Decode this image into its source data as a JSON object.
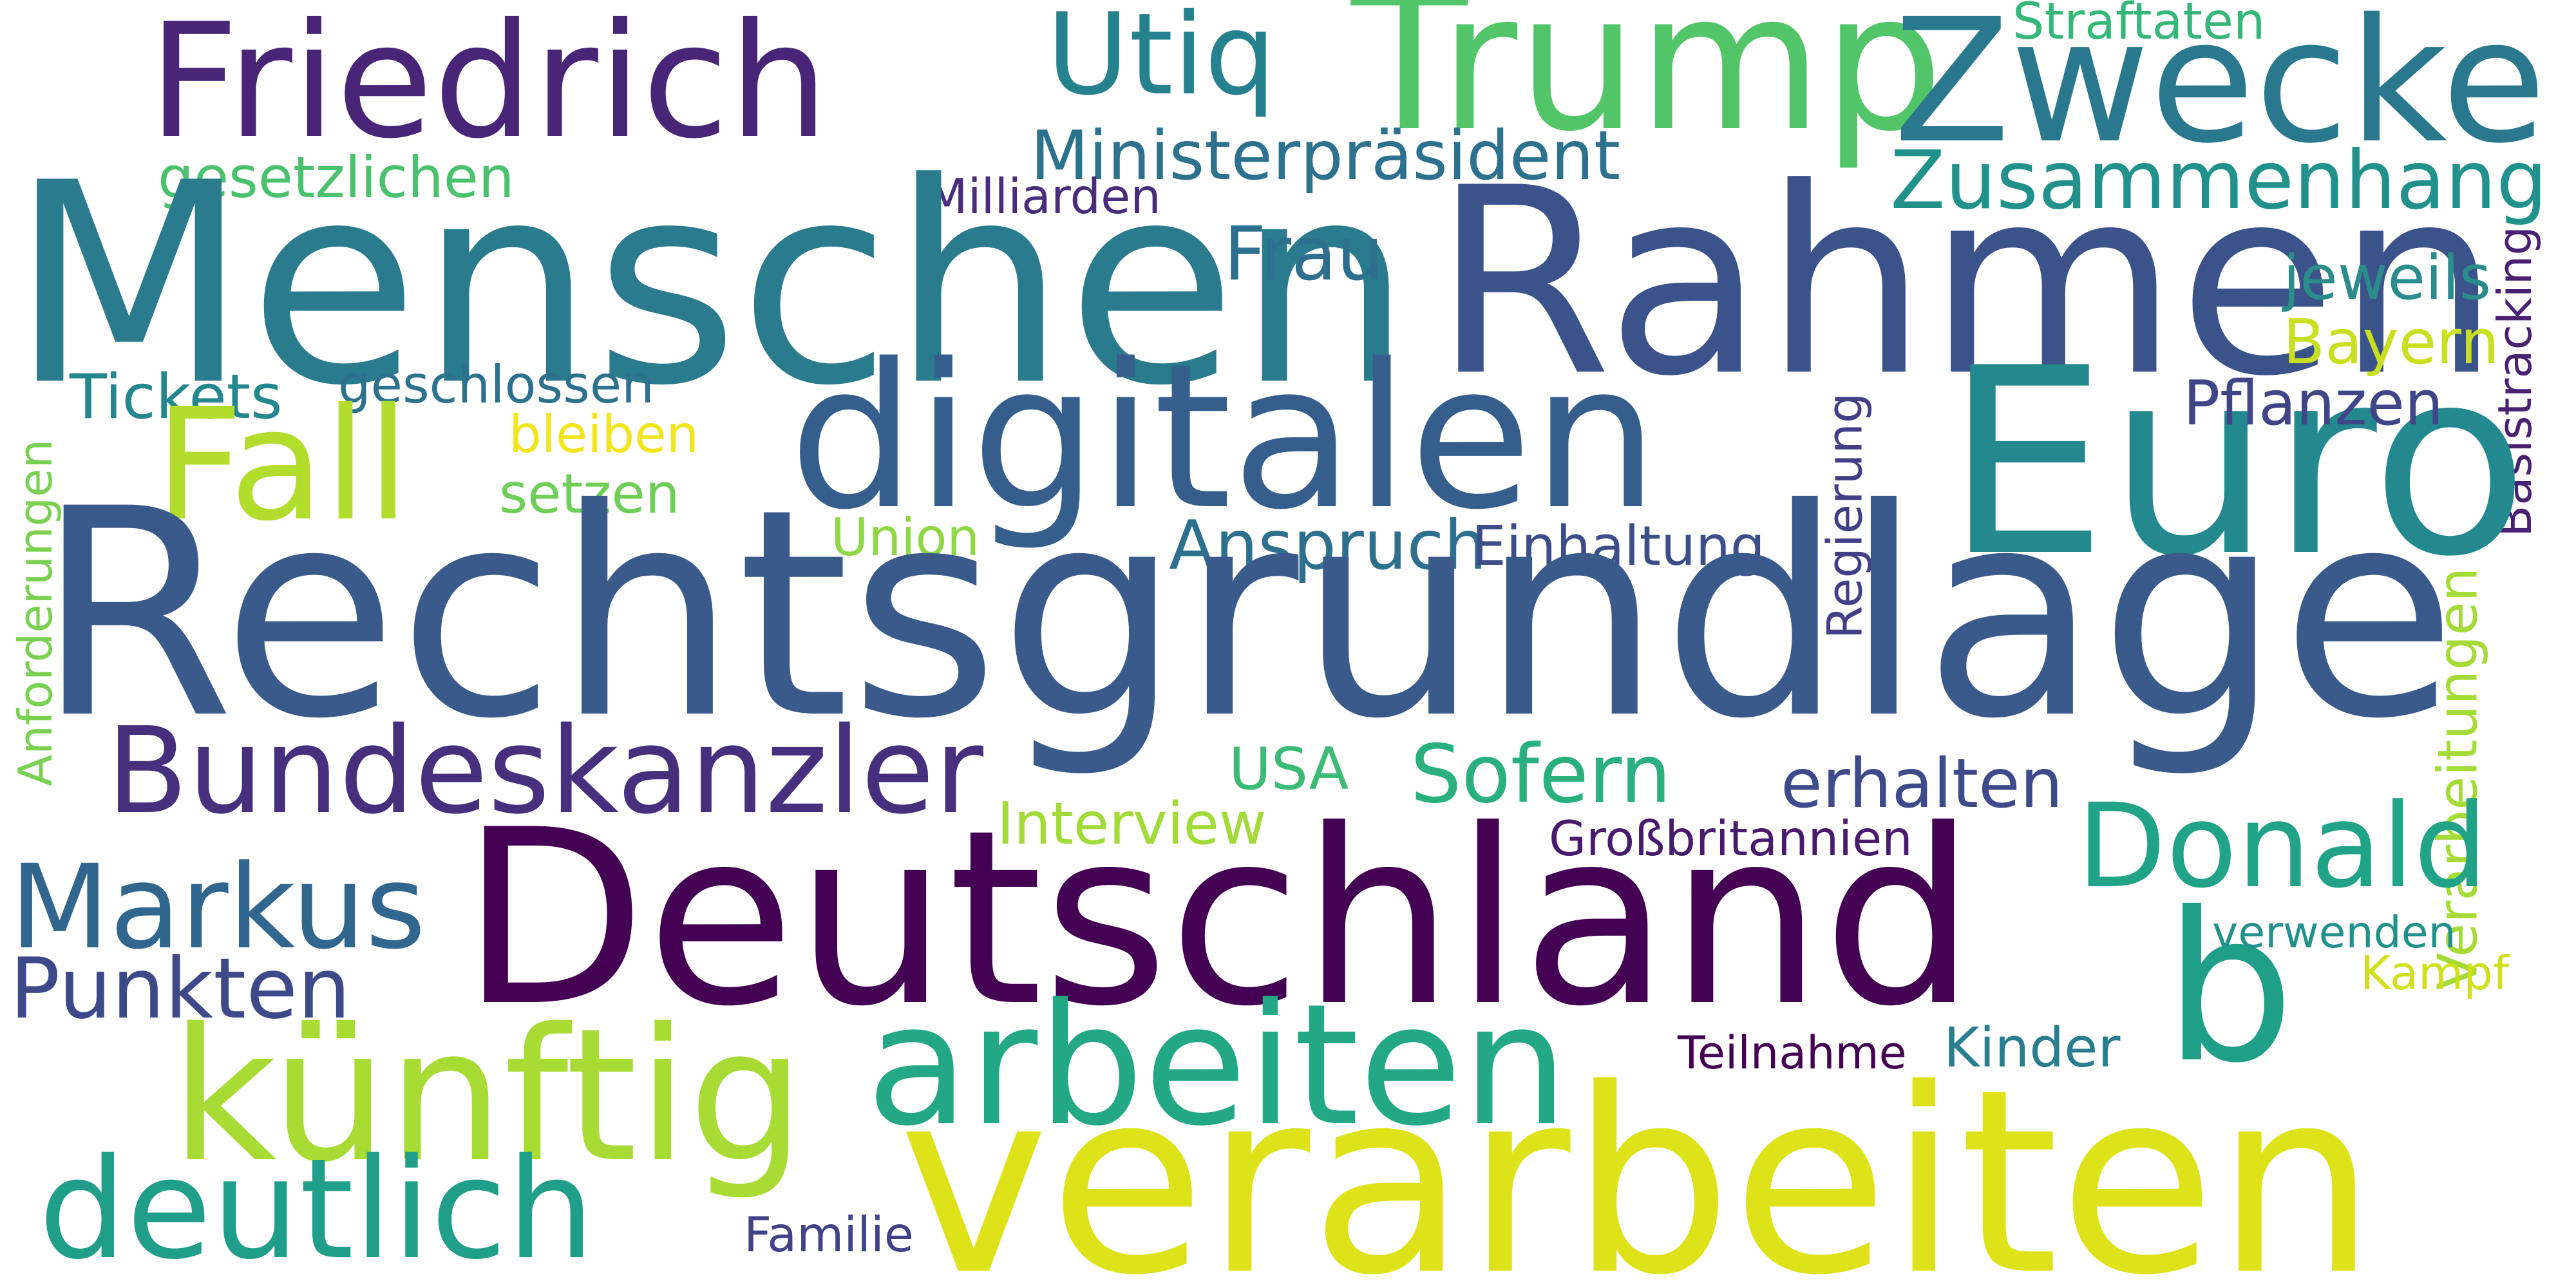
{
  "words": [
    {
      "id": "friedrich",
      "text": "Friedrich",
      "color": "#482576"
    },
    {
      "id": "utiq",
      "text": "Utiq",
      "color": "#26818e"
    },
    {
      "id": "trump",
      "text": "Trump",
      "color": "#52c569"
    },
    {
      "id": "zwecke",
      "text": "Zwecke",
      "color": "#2a788e"
    },
    {
      "id": "straftaten",
      "text": "Straftaten",
      "color": "#35b779"
    },
    {
      "id": "ministerpraesident",
      "text": "Ministerpräsident",
      "color": "#2c718e"
    },
    {
      "id": "gesetzlichen",
      "text": "gesetzlichen",
      "color": "#4ac16d"
    },
    {
      "id": "milliarden",
      "text": "Milliarden",
      "color": "#472d7b"
    },
    {
      "id": "zusammenhang",
      "text": "Zusammenhang",
      "color": "#21918c"
    },
    {
      "id": "menschen",
      "text": "Menschen",
      "color": "#2a7b8e"
    },
    {
      "id": "rahmen",
      "text": "Rahmen",
      "color": "#3b528b"
    },
    {
      "id": "frau",
      "text": "Frau",
      "color": "#2d6f8e"
    },
    {
      "id": "jeweils",
      "text": "jeweils",
      "color": "#2a8c8b"
    },
    {
      "id": "basistracking",
      "text": "Basistracking",
      "color": "#482173"
    },
    {
      "id": "bayern",
      "text": "Bayern",
      "color": "#c8e020"
    },
    {
      "id": "tickets",
      "text": "Tickets",
      "color": "#24878e"
    },
    {
      "id": "geschlossen",
      "text": "geschlossen",
      "color": "#2c728e"
    },
    {
      "id": "digitalen",
      "text": "digitalen",
      "color": "#355e8d"
    },
    {
      "id": "euro",
      "text": "Euro",
      "color": "#23898e"
    },
    {
      "id": "fall",
      "text": "Fall",
      "color": "#b2dd2d"
    },
    {
      "id": "bleiben",
      "text": "bleiben",
      "color": "#f1e51d"
    },
    {
      "id": "setzen",
      "text": "setzen",
      "color": "#6ece58"
    },
    {
      "id": "pflanzen",
      "text": "Pflanzen",
      "color": "#404588"
    },
    {
      "id": "anforderungen",
      "text": "Anforderungen",
      "color": "#7ad151"
    },
    {
      "id": "regierung",
      "text": "Regierung",
      "color": "#433e85"
    },
    {
      "id": "union",
      "text": "Union",
      "color": "#8fd744"
    },
    {
      "id": "anspruch",
      "text": "Anspruch",
      "color": "#2d708e"
    },
    {
      "id": "einhaltung",
      "text": "Einhaltung",
      "color": "#3d4d8a"
    },
    {
      "id": "rechtsgrundlage",
      "text": "Rechtsgrundlage",
      "color": "#3b5a8c"
    },
    {
      "id": "verarbeitungen",
      "text": "Verarbeitungen",
      "color": "#a5db36"
    },
    {
      "id": "bundeskanzler",
      "text": "Bundeskanzler",
      "color": "#46307e"
    },
    {
      "id": "usa",
      "text": "USA",
      "color": "#3bbb75"
    },
    {
      "id": "sofern",
      "text": "Sofern",
      "color": "#2ab07f"
    },
    {
      "id": "erhalten",
      "text": "erhalten",
      "color": "#3e4a89"
    },
    {
      "id": "interview",
      "text": "Interview",
      "color": "#a2da37"
    },
    {
      "id": "grossbritannien",
      "text": "Großbritannien",
      "color": "#481a6c"
    },
    {
      "id": "donald",
      "text": "Donald",
      "color": "#20a386"
    },
    {
      "id": "deutschland",
      "text": "Deutschland",
      "color": "#440154"
    },
    {
      "id": "markus",
      "text": "Markus",
      "color": "#31668e"
    },
    {
      "id": "punkten",
      "text": "Punkten",
      "color": "#3e4989"
    },
    {
      "id": "b",
      "text": "b",
      "color": "#1f9f88"
    },
    {
      "id": "verwenden",
      "text": "verwenden",
      "color": "#21918c"
    },
    {
      "id": "kampf",
      "text": "Kampf",
      "color": "#d0e11c"
    },
    {
      "id": "kuenftig",
      "text": "künftig",
      "color": "#a8db34"
    },
    {
      "id": "arbeiten",
      "text": "arbeiten",
      "color": "#22a884"
    },
    {
      "id": "teilnahme",
      "text": "Teilnahme",
      "color": "#440154"
    },
    {
      "id": "kinder",
      "text": "Kinder",
      "color": "#287d8e"
    },
    {
      "id": "deutlich",
      "text": "deutlich",
      "color": "#1f9e89"
    },
    {
      "id": "familie",
      "text": "Familie",
      "color": "#414287"
    },
    {
      "id": "verarbeiten",
      "text": "verarbeiten",
      "color": "#dde318"
    }
  ]
}
